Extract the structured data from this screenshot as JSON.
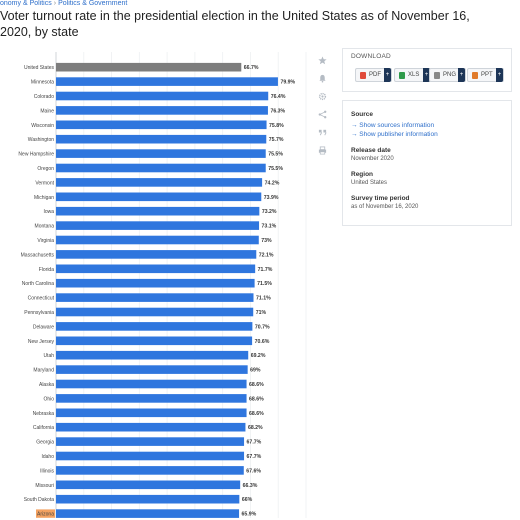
{
  "breadcrumb": {
    "part1": "onomy & Politics",
    "sep": "›",
    "part2": "Politics & Government"
  },
  "page_title": "Voter turnout rate in the presidential election in the United States as of November 16, 2020, by state",
  "toolbar": {
    "icons": [
      "star-icon",
      "bell-icon",
      "gear-icon",
      "share-icon",
      "quote-icon",
      "print-icon"
    ]
  },
  "download": {
    "heading": "DOWNLOAD",
    "buttons": [
      {
        "label": "PDF",
        "color": "#e04a3a"
      },
      {
        "label": "XLS",
        "color": "#2e9a4a"
      },
      {
        "label": "PNG",
        "color": "#888888"
      },
      {
        "label": "PPT",
        "color": "#e07a2a"
      }
    ],
    "plus": "+"
  },
  "info": {
    "source_heading": "Source",
    "show_sources": "→ Show sources information",
    "show_publisher": "→ Show publisher information",
    "release_heading": "Release date",
    "release_value": "November 2020",
    "region_heading": "Region",
    "region_value": "United States",
    "survey_heading": "Survey time period",
    "survey_value": "as of November 16, 2020"
  },
  "colors": {
    "bar": "#2f76de",
    "highlight_bar": "#7d7d7d",
    "highlight_label_bg": "#f4a261"
  },
  "chart_data": {
    "type": "bar",
    "orientation": "horizontal",
    "categories": [
      "United States",
      "Minnesota",
      "Colorado",
      "Maine",
      "Wisconsin",
      "Washington",
      "New Hampshire",
      "Oregon",
      "Vermont",
      "Michigan",
      "Iowa",
      "Montana",
      "Virginia",
      "Massachusetts",
      "Florida",
      "North Carolina",
      "Connecticut",
      "Pennsylvania",
      "Delaware",
      "New Jersey",
      "Utah",
      "Maryland",
      "Alaska",
      "Ohio",
      "Nebraska",
      "California",
      "Georgia",
      "Idaho",
      "Illinois",
      "Missouri",
      "South Dakota",
      "Arizona"
    ],
    "values": [
      66.7,
      79.9,
      76.4,
      76.3,
      75.8,
      75.7,
      75.5,
      75.5,
      74.2,
      73.9,
      73.2,
      73.1,
      73,
      72.1,
      71.7,
      71.5,
      71.1,
      71,
      70.7,
      70.6,
      69.2,
      69,
      68.6,
      68.6,
      68.6,
      68.2,
      67.7,
      67.7,
      67.6,
      66.3,
      66,
      65.9
    ],
    "value_labels": [
      "66.7%",
      "79.9%",
      "76.4%",
      "76.3%",
      "75.8%",
      "75.7%",
      "75.5%",
      "75.5%",
      "74.2%",
      "73.9%",
      "73.2%",
      "73.1%",
      "73%",
      "72.1%",
      "71.7%",
      "71.5%",
      "71.1%",
      "71%",
      "70.7%",
      "70.6%",
      "69.2%",
      "69%",
      "68.6%",
      "68.6%",
      "68.6%",
      "68.2%",
      "67.7%",
      "67.7%",
      "67.6%",
      "66.3%",
      "66%",
      "65.9%"
    ],
    "highlight_gray": "United States",
    "highlight_label": "Arizona",
    "xlim": [
      0,
      90
    ],
    "grid": true
  }
}
